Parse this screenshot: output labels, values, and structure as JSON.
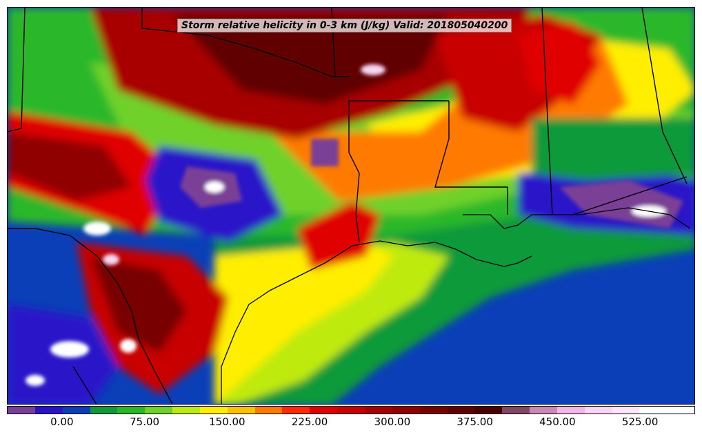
{
  "title": "Storm relative helicity in 0-3 km (J/kg) Valid: 201805040200",
  "colorbar": {
    "colors": [
      "#7a3f96",
      "#2a12c8",
      "#0a3fb8",
      "#0e9a3a",
      "#2ab82a",
      "#6fd12a",
      "#bfea10",
      "#ffee00",
      "#ffc200",
      "#ff7a00",
      "#ff2a00",
      "#e00000",
      "#c80000",
      "#a80000",
      "#900000",
      "#780000",
      "#600000",
      "#4a0000",
      "#7e4a63",
      "#c98bb5",
      "#f0b8e8",
      "#f8d6f4",
      "#fce8fa",
      "#ffffff",
      "#ffffff"
    ],
    "ticks": [
      "0.00",
      "75.00",
      "150.00",
      "225.00",
      "300.00",
      "375.00",
      "450.00",
      "525.00"
    ],
    "tick_values": [
      0,
      75,
      150,
      225,
      300,
      375,
      450,
      525
    ],
    "range": [
      -50,
      575
    ]
  }
}
